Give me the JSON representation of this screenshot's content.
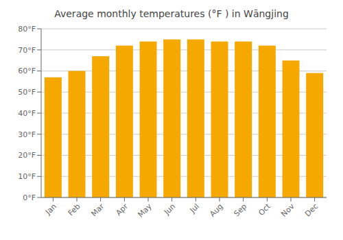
{
  "chart_data": {
    "type": "bar",
    "title": "Average monthly temperatures (°F ) in Wāngjing",
    "categories": [
      "Jan",
      "Feb",
      "Mar",
      "Apr",
      "May",
      "Jun",
      "Jul",
      "Aug",
      "Sep",
      "Oct",
      "Nov",
      "Dec"
    ],
    "values": [
      57,
      60,
      67,
      72,
      74,
      75,
      75,
      74,
      74,
      72,
      65,
      59
    ],
    "color": "#F5A800",
    "ylim": [
      0,
      80
    ],
    "yticks": [
      {
        "value": 0,
        "label": "0°F"
      },
      {
        "value": 10,
        "label": "10°F"
      },
      {
        "value": 20,
        "label": "20°F"
      },
      {
        "value": 30,
        "label": "30°F"
      },
      {
        "value": 40,
        "label": "40°F"
      },
      {
        "value": 50,
        "label": "50°F"
      },
      {
        "value": 60,
        "label": "60°F"
      },
      {
        "value": 70,
        "label": "70°F"
      },
      {
        "value": 80,
        "label": "80°F"
      }
    ],
    "grid": true
  }
}
